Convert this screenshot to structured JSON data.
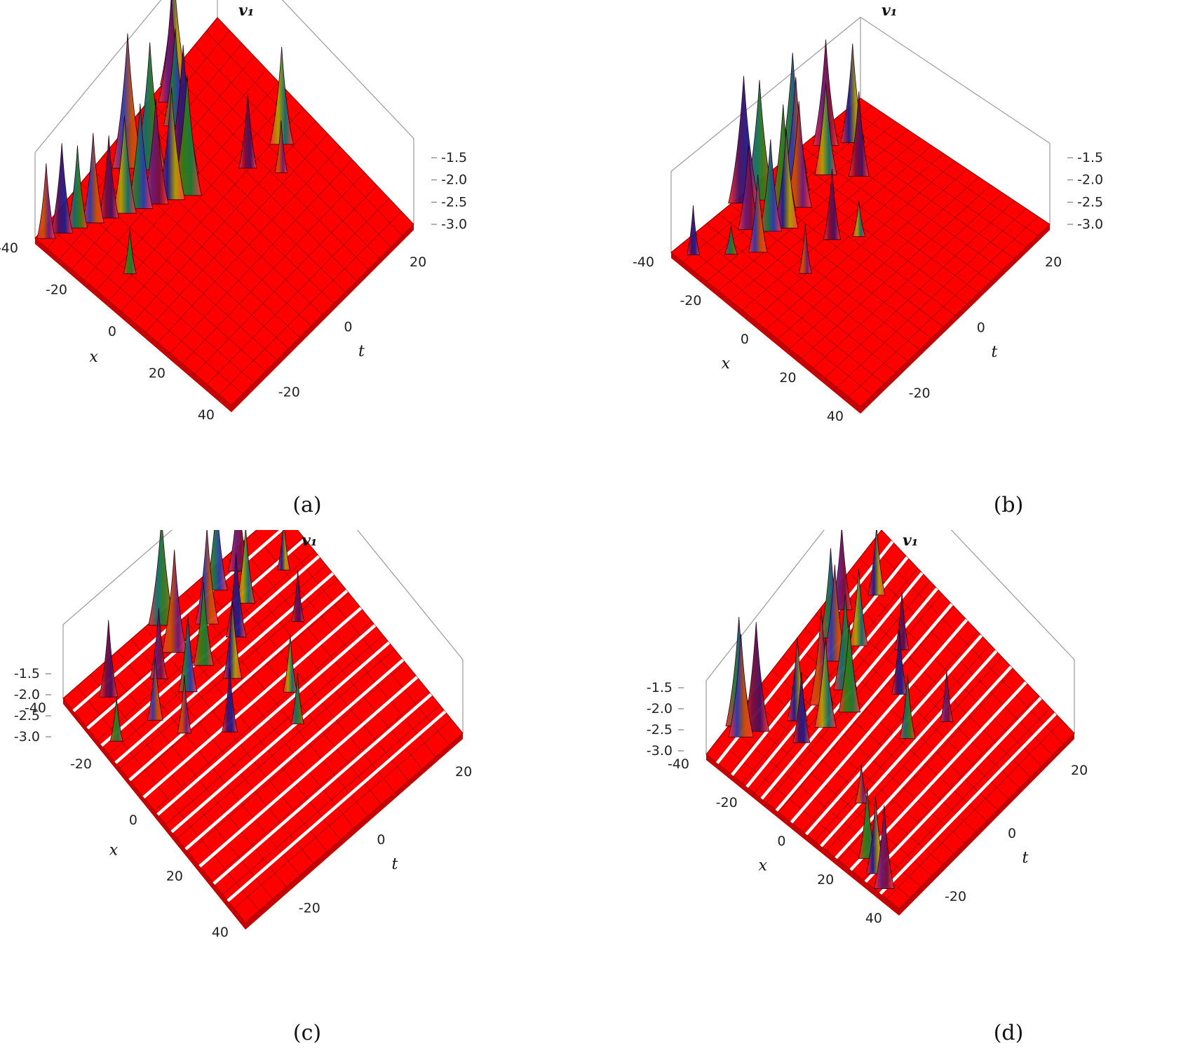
{
  "chart_data": [
    {
      "type": "surface3d",
      "caption": "(a)",
      "zlabel": "v₁",
      "xlabel": "x",
      "tlabel": "t",
      "x_ticks": [
        "-40",
        "-20",
        "0",
        "20",
        "40"
      ],
      "t_ticks": [
        "-20",
        "0",
        "20"
      ],
      "z_ticks": [
        "-1.5",
        "-2.0",
        "-2.5",
        "-3.0"
      ],
      "xlim": [
        -40,
        40
      ],
      "tlim": [
        -30,
        30
      ],
      "zlim": [
        -3.0,
        -1.2
      ],
      "base_level": -3.0,
      "surface_color": "#ff0000",
      "white_strips": false,
      "peaks": [
        {
          "x": -38,
          "t": 28,
          "z": -2.0
        },
        {
          "x": -34,
          "t": 26,
          "z": -1.8
        },
        {
          "x": -30,
          "t": 24,
          "z": -1.9
        },
        {
          "x": -26,
          "t": 22,
          "z": -1.8
        },
        {
          "x": -22,
          "t": 20,
          "z": -1.9
        },
        {
          "x": -18,
          "t": 18,
          "z": -1.7
        },
        {
          "x": -14,
          "t": 16,
          "z": -1.6
        },
        {
          "x": -10,
          "t": 14,
          "z": -1.6
        },
        {
          "x": -30,
          "t": 8,
          "z": -2.4
        },
        {
          "x": -6,
          "t": 12,
          "z": -1.5
        },
        {
          "x": -2,
          "t": 10,
          "z": -1.4
        },
        {
          "x": 2,
          "t": 14,
          "z": -1.3
        },
        {
          "x": -4,
          "t": 20,
          "z": -1.3
        },
        {
          "x": -8,
          "t": 24,
          "z": -1.2
        },
        {
          "x": 10,
          "t": 22,
          "z": -1.7
        },
        {
          "x": 14,
          "t": 26,
          "z": -1.6
        },
        {
          "x": 18,
          "t": 28,
          "z": -1.5
        },
        {
          "x": 16,
          "t": 4,
          "z": -2.0
        },
        {
          "x": 28,
          "t": 2,
          "z": -1.7
        },
        {
          "x": 22,
          "t": -2,
          "z": -2.3
        }
      ]
    },
    {
      "type": "surface3d",
      "caption": "(b)",
      "zlabel": "v₁",
      "xlabel": "x",
      "tlabel": "t",
      "x_ticks": [
        "-40",
        "-20",
        "0",
        "20",
        "40"
      ],
      "t_ticks": [
        "-20",
        "0",
        "20"
      ],
      "z_ticks": [
        "-1.5",
        "-2.0",
        "-2.5",
        "-3.0"
      ],
      "xlim": [
        -40,
        40
      ],
      "tlim": [
        -30,
        30
      ],
      "zlim": [
        -3.0,
        -1.2
      ],
      "base_level": -3.0,
      "surface_color": "#ff0000",
      "white_strips": false,
      "peaks": [
        {
          "x": -36,
          "t": 26,
          "z": -2.3
        },
        {
          "x": -28,
          "t": 20,
          "z": -2.6
        },
        {
          "x": -22,
          "t": 16,
          "z": -1.9
        },
        {
          "x": -18,
          "t": 22,
          "z": -1.8
        },
        {
          "x": -14,
          "t": 18,
          "z": -1.7
        },
        {
          "x": -10,
          "t": 16,
          "z": -1.6
        },
        {
          "x": -6,
          "t": 20,
          "z": -1.5
        },
        {
          "x": -2,
          "t": 18,
          "z": -1.5
        },
        {
          "x": 2,
          "t": 22,
          "z": -1.4
        },
        {
          "x": -8,
          "t": 26,
          "z": -1.3
        },
        {
          "x": -12,
          "t": 28,
          "z": -1.2
        },
        {
          "x": 6,
          "t": 26,
          "z": -1.3
        },
        {
          "x": 12,
          "t": 20,
          "z": -1.7
        },
        {
          "x": 18,
          "t": 14,
          "z": -1.8
        },
        {
          "x": -4,
          "t": 6,
          "z": -2.0
        },
        {
          "x": 2,
          "t": 2,
          "z": -2.5
        },
        {
          "x": -18,
          "t": 4,
          "z": -2.3
        },
        {
          "x": 20,
          "t": 26,
          "z": -1.5
        },
        {
          "x": 26,
          "t": 22,
          "z": -1.6
        }
      ]
    },
    {
      "type": "surface3d",
      "caption": "(c)",
      "zlabel": "v₁",
      "xlabel": "x",
      "tlabel": "t",
      "x_ticks": [
        "-40",
        "-20",
        "0",
        "20",
        "40"
      ],
      "t_ticks": [
        "-20",
        "0",
        "20"
      ],
      "z_ticks": [
        "-1.5",
        "-2.0",
        "-2.5",
        "-3.0"
      ],
      "xlim": [
        -40,
        40
      ],
      "tlim": [
        -30,
        30
      ],
      "zlim": [
        -3.0,
        -1.2
      ],
      "base_level": -3.0,
      "surface_color": "#ff0000",
      "white_strips": true,
      "peaks": [
        {
          "x": -36,
          "t": 16,
          "z": -2.3
        },
        {
          "x": -30,
          "t": 24,
          "z": -1.8
        },
        {
          "x": -24,
          "t": 14,
          "z": -2.0
        },
        {
          "x": -20,
          "t": 8,
          "z": -2.1
        },
        {
          "x": -16,
          "t": 20,
          "z": -1.9
        },
        {
          "x": -12,
          "t": 14,
          "z": -1.8
        },
        {
          "x": -8,
          "t": 22,
          "z": -1.4
        },
        {
          "x": -4,
          "t": 16,
          "z": -1.7
        },
        {
          "x": 0,
          "t": 10,
          "z": -1.8
        },
        {
          "x": -6,
          "t": 28,
          "z": -1.3
        },
        {
          "x": 4,
          "t": 22,
          "z": -1.5
        },
        {
          "x": 8,
          "t": 16,
          "z": -1.7
        },
        {
          "x": 12,
          "t": 26,
          "z": -1.6
        },
        {
          "x": 16,
          "t": 20,
          "z": -1.8
        },
        {
          "x": -10,
          "t": 2,
          "z": -2.0
        },
        {
          "x": 10,
          "t": 0,
          "z": -2.1
        },
        {
          "x": 24,
          "t": 10,
          "z": -2.2
        },
        {
          "x": 20,
          "t": 26,
          "z": -1.7
        },
        {
          "x": 6,
          "t": -6,
          "z": -2.2
        },
        {
          "x": 30,
          "t": 20,
          "z": -2.2
        }
      ]
    },
    {
      "type": "surface3d",
      "caption": "(d)",
      "zlabel": "v₁",
      "xlabel": "x",
      "tlabel": "t",
      "x_ticks": [
        "-40",
        "-20",
        "0",
        "20",
        "40"
      ],
      "t_ticks": [
        "-20",
        "0",
        "20"
      ],
      "z_ticks": [
        "-1.5",
        "-2.0",
        "-2.5",
        "-3.0"
      ],
      "xlim": [
        -40,
        40
      ],
      "tlim": [
        -30,
        30
      ],
      "zlim": [
        -3.0,
        -1.2
      ],
      "base_level": -3.0,
      "surface_color": "#ff0000",
      "white_strips": true,
      "peaks": [
        {
          "x": -38,
          "t": -24,
          "z": -1.7
        },
        {
          "x": -36,
          "t": -20,
          "z": -1.8
        },
        {
          "x": -34,
          "t": -16,
          "z": -1.9
        },
        {
          "x": -30,
          "t": 26,
          "z": -1.4
        },
        {
          "x": -28,
          "t": 28,
          "z": -1.3
        },
        {
          "x": -26,
          "t": 24,
          "z": -1.3
        },
        {
          "x": -20,
          "t": 14,
          "z": -1.9
        },
        {
          "x": -16,
          "t": 18,
          "z": -1.7
        },
        {
          "x": -12,
          "t": 12,
          "z": -1.6
        },
        {
          "x": -8,
          "t": 16,
          "z": -1.5
        },
        {
          "x": -4,
          "t": 10,
          "z": -1.6
        },
        {
          "x": 0,
          "t": 14,
          "z": -1.5
        },
        {
          "x": 4,
          "t": 20,
          "z": -1.5
        },
        {
          "x": 8,
          "t": 24,
          "z": -1.6
        },
        {
          "x": 12,
          "t": 18,
          "z": -1.8
        },
        {
          "x": 16,
          "t": 26,
          "z": -1.7
        },
        {
          "x": 2,
          "t": -4,
          "z": -2.0
        },
        {
          "x": 10,
          "t": 4,
          "z": -2.0
        },
        {
          "x": 20,
          "t": 10,
          "z": -2.1
        },
        {
          "x": 26,
          "t": 22,
          "z": -1.9
        },
        {
          "x": -22,
          "t": -6,
          "z": -2.4
        },
        {
          "x": 14,
          "t": -8,
          "z": -2.2
        }
      ]
    }
  ]
}
